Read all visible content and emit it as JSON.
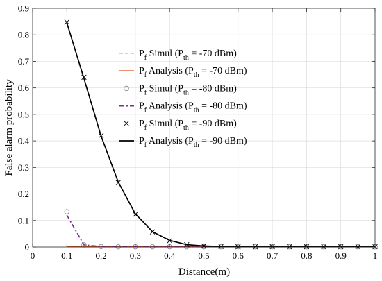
{
  "chart_data": {
    "type": "line",
    "xlabel": "Distance(m)",
    "ylabel": "False alarm probability",
    "xlim": [
      0,
      1
    ],
    "ylim": [
      0,
      0.9
    ],
    "xticks": [
      "0",
      "0.1",
      "0.2",
      "0.3",
      "0.4",
      "0.5",
      "0.6",
      "0.7",
      "0.8",
      "0.9",
      "1"
    ],
    "yticks": [
      "0",
      "0.1",
      "0.2",
      "0.3",
      "0.4",
      "0.5",
      "0.6",
      "0.7",
      "0.8",
      "0.9"
    ],
    "grid": true,
    "legend_position": "upper-center",
    "x": [
      0.1,
      0.15,
      0.2,
      0.25,
      0.3,
      0.35,
      0.4,
      0.45,
      0.5,
      0.55,
      0.6,
      0.65,
      0.7,
      0.75,
      0.8,
      0.85,
      0.9,
      0.95,
      1.0
    ],
    "series": [
      {
        "name": "P_f Simul (P_th = -70 dBm)",
        "legend": {
          "main": "P",
          "sub": "f",
          "mid": " Simul (P",
          "sub2": "th",
          "tail": " = -70 dBm)"
        },
        "style": "dashed",
        "marker": "none",
        "color": "#7fb2d9",
        "values": [
          0.003,
          0.0015,
          0.001,
          0.001,
          0.001,
          0.001,
          0.001,
          0.001,
          0.001,
          0.001,
          0.001,
          0.001,
          0.001,
          0.001,
          0.001,
          0.001,
          0.001,
          0.001,
          0.001
        ]
      },
      {
        "name": "P_f Analysis (P_th = -70 dBm)",
        "legend": {
          "main": "P",
          "sub": "f",
          "mid": " Analysis (P",
          "sub2": "th",
          "tail": " = -70 dBm)"
        },
        "style": "solid",
        "marker": "none",
        "color": "#d95319",
        "values": [
          0.002,
          0.001,
          0.001,
          0.001,
          0.001,
          0.001,
          0.001,
          0.001,
          0.001,
          0.001,
          0.001,
          0.001,
          0.001,
          0.001,
          0.001,
          0.001,
          0.001,
          0.001,
          0.001
        ]
      },
      {
        "name": "P_f Simul (P_th = -80 dBm)",
        "legend": {
          "main": "P",
          "sub": "f",
          "mid": " Simul (P",
          "sub2": "th",
          "tail": " = -80 dBm)"
        },
        "style": "none",
        "marker": "circle",
        "color": "#888888",
        "values": [
          0.133,
          0.008,
          0.002,
          0.001,
          0.001,
          0.001,
          0.001,
          0.001,
          0.001,
          0.001,
          0.001,
          0.001,
          0.001,
          0.001,
          0.001,
          0.001,
          0.001,
          0.001,
          0.001
        ]
      },
      {
        "name": "P_f Analysis (P_th = -80 dBm)",
        "legend": {
          "main": "P",
          "sub": "f",
          "mid": " Analysis  (P",
          "sub2": "th",
          "tail": " = -80 dBm)"
        },
        "style": "dashdot",
        "marker": "none",
        "color": "#7e2f8e",
        "values": [
          0.12,
          0.008,
          0.002,
          0.001,
          0.001,
          0.001,
          0.001,
          0.001,
          0.001,
          0.001,
          0.001,
          0.001,
          0.001,
          0.001,
          0.001,
          0.001,
          0.001,
          0.001,
          0.001
        ]
      },
      {
        "name": "P_f Simul (P_th = -90 dBm)",
        "legend": {
          "main": "P",
          "sub": "f",
          "mid": " Simul (P",
          "sub2": "th",
          "tail": " = -90 dBm)"
        },
        "style": "none",
        "marker": "x",
        "color": "#000000",
        "values": [
          0.848,
          0.64,
          0.42,
          0.243,
          0.123,
          0.057,
          0.024,
          0.009,
          0.004,
          0.002,
          0.001,
          0.001,
          0.001,
          0.001,
          0.001,
          0.001,
          0.001,
          0.001,
          0.001
        ]
      },
      {
        "name": "P_f Analysis (P_th = -90 dBm)",
        "legend": {
          "main": "P",
          "sub": "f",
          "mid": " Analysis (P",
          "sub2": "th",
          "tail": " = -90 dBm)"
        },
        "style": "solid",
        "marker": "none",
        "color": "#000000",
        "values": [
          0.845,
          0.635,
          0.418,
          0.245,
          0.125,
          0.058,
          0.025,
          0.009,
          0.004,
          0.002,
          0.001,
          0.001,
          0.001,
          0.001,
          0.001,
          0.001,
          0.001,
          0.001,
          0.001
        ]
      }
    ]
  }
}
